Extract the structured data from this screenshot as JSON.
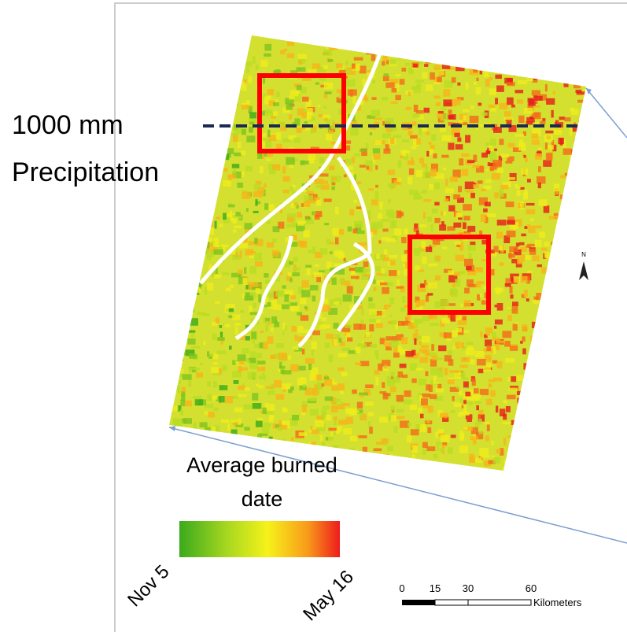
{
  "annotation": {
    "line1": "1000 mm",
    "line2": "Precipitation"
  },
  "north_arrow": "N",
  "legend": {
    "title_line1": "Average burned",
    "title_line2": "date",
    "start": "Nov 5",
    "end": "May 16"
  },
  "scale_bar": {
    "ticks": [
      "0",
      "15",
      "30",
      "60"
    ],
    "unit": "Kilometers"
  }
}
